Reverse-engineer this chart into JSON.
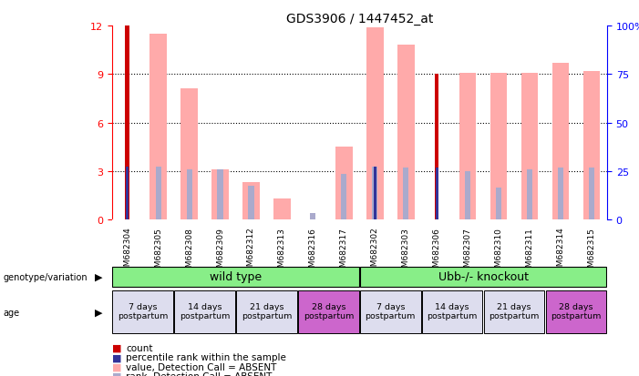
{
  "title": "GDS3906 / 1447452_at",
  "samples": [
    "GSM682304",
    "GSM682305",
    "GSM682308",
    "GSM682309",
    "GSM682312",
    "GSM682313",
    "GSM682316",
    "GSM682317",
    "GSM682302",
    "GSM682303",
    "GSM682306",
    "GSM682307",
    "GSM682310",
    "GSM682311",
    "GSM682314",
    "GSM682315"
  ],
  "count_red": [
    12,
    0,
    0,
    0,
    0,
    0,
    0,
    0,
    0,
    0,
    9,
    0,
    0,
    0,
    0,
    0
  ],
  "rank_blue": [
    3.3,
    0,
    0,
    0,
    0,
    0,
    0,
    0,
    3.3,
    0,
    3.2,
    0,
    0,
    0,
    0,
    0
  ],
  "value_pink": [
    0,
    11.5,
    8.1,
    3.1,
    2.3,
    1.3,
    0,
    4.5,
    11.9,
    10.8,
    0,
    9.1,
    9.1,
    9.1,
    9.7,
    9.2
  ],
  "rank_lightblue": [
    0,
    3.3,
    3.1,
    3.1,
    2.1,
    0,
    0.4,
    2.8,
    3.3,
    3.2,
    0,
    3.0,
    2.0,
    3.1,
    3.2,
    3.2
  ],
  "ylim": [
    0,
    12
  ],
  "yticks_left": [
    0,
    3,
    6,
    9,
    12
  ],
  "yticks_right": [
    0,
    25,
    50,
    75,
    100
  ],
  "color_red": "#cc0000",
  "color_blue": "#333399",
  "color_pink": "#ffaaaa",
  "color_lightblue": "#aaaacc",
  "color_green": "#88ee88",
  "color_purple": "#cc66cc",
  "color_lightpurple": "#ddaadd",
  "color_sample_bg": "#cccccc"
}
